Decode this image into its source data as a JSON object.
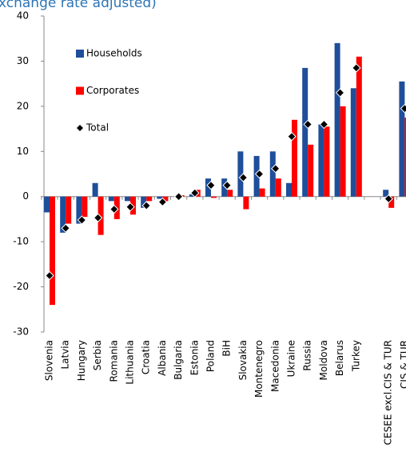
{
  "chart_data": {
    "type": "bar",
    "title": "xchange rate adjusted)",
    "categories": [
      "Slovenia",
      "Latvia",
      "Hungary",
      "Serbia",
      "Romania",
      "Lithuania",
      "Croatia",
      "Albania",
      "Bulgaria",
      "Estonia",
      "Poland",
      "BiH",
      "Slovakia",
      "Montenegro",
      "Macedonia",
      "Ukraine",
      "Russia",
      "Moldova",
      "Belarus",
      "Turkey",
      null,
      "CESEE excl.CIS & TUR",
      "CIS & TUR"
    ],
    "series": [
      {
        "name": "Households",
        "color": "#1f4e9a",
        "marker": "bar",
        "values": [
          -3.5,
          -8,
          -6,
          3,
          -1,
          -1,
          -2.5,
          -0.5,
          0,
          0.5,
          4,
          4,
          10,
          9,
          10,
          3,
          28.5,
          16,
          34,
          24,
          null,
          1.5,
          25.5
        ]
      },
      {
        "name": "Corporates",
        "color": "#ff0000",
        "marker": "bar",
        "values": [
          -24,
          -6,
          -4.5,
          -8.5,
          -5,
          -4,
          -1,
          -1,
          0.3,
          1.5,
          -0.3,
          1.5,
          -2.8,
          1.8,
          4,
          17,
          11.5,
          15.5,
          20,
          31,
          null,
          -2.5,
          17.5
        ]
      },
      {
        "name": "Total",
        "color": "#000000",
        "marker": "diamond",
        "values": [
          -17.5,
          -7,
          -5.2,
          -4.7,
          -2.8,
          -2.3,
          -2,
          -1.2,
          0,
          0.8,
          2.5,
          2.5,
          4.2,
          5,
          6.2,
          13.3,
          16,
          16,
          23,
          28.5,
          null,
          -0.5,
          19.5
        ]
      }
    ],
    "ylim": [
      -30,
      40
    ],
    "yticks": [
      -30,
      -20,
      -10,
      0,
      10,
      20,
      30,
      40
    ],
    "grid": false,
    "legend": "top-left"
  }
}
